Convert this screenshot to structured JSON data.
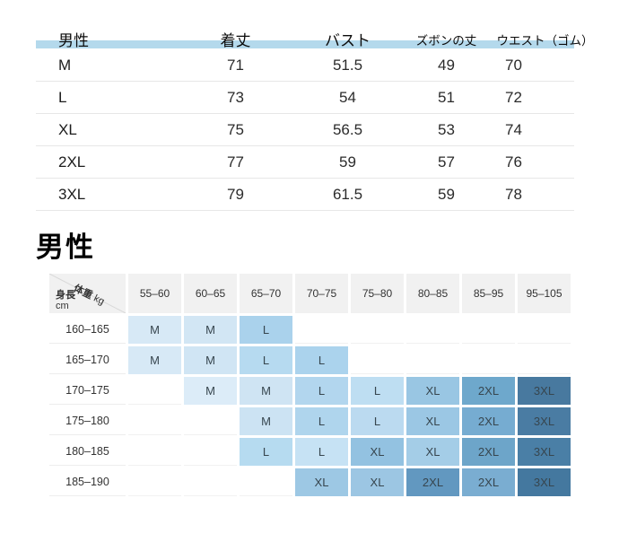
{
  "top_table": {
    "band_color": "#b4d9ec",
    "headers": [
      "男性",
      "着丈",
      "バスト",
      "ズボンの丈",
      "ウエスト（ゴム）"
    ],
    "rows": [
      {
        "size": "M",
        "values": [
          "71",
          "51.5",
          "49",
          "70"
        ]
      },
      {
        "size": "L",
        "values": [
          "73",
          "54",
          "51",
          "72"
        ]
      },
      {
        "size": "XL",
        "values": [
          "75",
          "56.5",
          "53",
          "74"
        ]
      },
      {
        "size": "2XL",
        "values": [
          "77",
          "59",
          "57",
          "76"
        ]
      },
      {
        "size": "3XL",
        "values": [
          "79",
          "61.5",
          "59",
          "78"
        ]
      }
    ]
  },
  "section": {
    "title": "男性"
  },
  "matrix": {
    "corner": {
      "weight_label": "体重",
      "weight_unit": "kg",
      "height_label": "身長",
      "height_unit": "cm"
    },
    "col_headers": [
      "55–60",
      "60–65",
      "65–70",
      "70–75",
      "75–80",
      "80–85",
      "85–95",
      "95–105"
    ],
    "row_headers": [
      "160–165",
      "165–170",
      "170–175",
      "175–180",
      "180–185",
      "185–190"
    ],
    "cells": [
      [
        {
          "label": "M",
          "color": "#d7e9f6"
        },
        {
          "label": "M",
          "color": "#d2e6f4"
        },
        {
          "label": "L",
          "color": "#aad2ec"
        },
        null,
        null,
        null,
        null,
        null
      ],
      [
        {
          "label": "M",
          "color": "#d7e9f6"
        },
        {
          "label": "M",
          "color": "#d0e5f4"
        },
        {
          "label": "L",
          "color": "#b6daf0"
        },
        {
          "label": "L",
          "color": "#abd3ed"
        },
        null,
        null,
        null,
        null
      ],
      [
        null,
        {
          "label": "M",
          "color": "#dcecf8"
        },
        {
          "label": "M",
          "color": "#cfe4f3"
        },
        {
          "label": "L",
          "color": "#b2d6ee"
        },
        {
          "label": "L",
          "color": "#bedef2"
        },
        {
          "label": "XL",
          "color": "#99c6e3"
        },
        {
          "label": "2XL",
          "color": "#6ea8cc"
        },
        {
          "label": "3XL",
          "color": "#48799f"
        }
      ],
      [
        null,
        null,
        {
          "label": "M",
          "color": "#cce3f3"
        },
        {
          "label": "L",
          "color": "#afd5ed"
        },
        {
          "label": "L",
          "color": "#bbdaf0"
        },
        {
          "label": "XL",
          "color": "#9bc7e4"
        },
        {
          "label": "2XL",
          "color": "#76acd1"
        },
        {
          "label": "3XL",
          "color": "#4a7ca3"
        }
      ],
      [
        null,
        null,
        {
          "label": "L",
          "color": "#b6dbf0"
        },
        {
          "label": "L",
          "color": "#c6e2f4"
        },
        {
          "label": "XL",
          "color": "#93c2e1"
        },
        {
          "label": "XL",
          "color": "#a4cde7"
        },
        {
          "label": "2XL",
          "color": "#6da5c9"
        },
        {
          "label": "3XL",
          "color": "#4a7fa6"
        }
      ],
      [
        null,
        null,
        null,
        {
          "label": "XL",
          "color": "#9dc8e4"
        },
        {
          "label": "XL",
          "color": "#9cc6e3"
        },
        {
          "label": "2XL",
          "color": "#6298c0"
        },
        {
          "label": "2XL",
          "color": "#7aadd1"
        },
        {
          "label": "3XL",
          "color": "#44789f"
        }
      ]
    ]
  }
}
